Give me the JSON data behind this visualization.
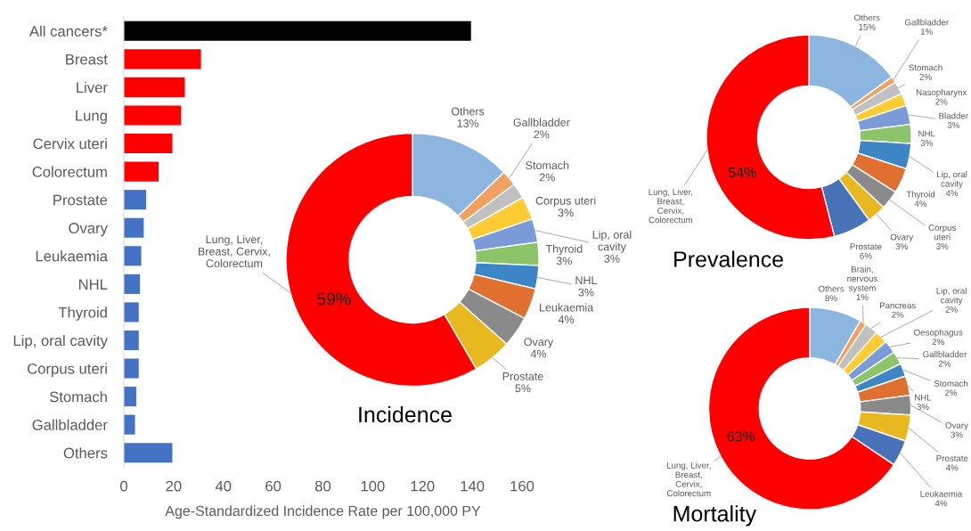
{
  "chart_data": [
    {
      "type": "bar",
      "orientation": "horizontal",
      "categories": [
        "All cancers*",
        "Breast",
        "Liver",
        "Lung",
        "Cervix uteri",
        "Colorectum",
        "Prostate",
        "Ovary",
        "Leukaemia",
        "NHL",
        "Thyroid",
        "Lip, oral cavity",
        "Corpus uteri",
        "Stomach",
        "Gallbladder",
        "Others"
      ],
      "values": [
        139.5,
        31,
        24.5,
        23,
        19.5,
        14,
        9,
        8,
        7,
        6.5,
        6,
        6,
        6,
        5,
        4.5,
        19.5
      ],
      "colors": [
        "#000000",
        "#ff0000",
        "#ff0000",
        "#ff0000",
        "#ff0000",
        "#ff0000",
        "#4472c4",
        "#4472c4",
        "#4472c4",
        "#4472c4",
        "#4472c4",
        "#4472c4",
        "#4472c4",
        "#4472c4",
        "#4472c4",
        "#4472c4"
      ],
      "xlabel": "Age-Standardized Incidence Rate per 100,000 PY",
      "xlim": [
        0,
        160
      ],
      "xticks": [
        0,
        20,
        40,
        60,
        80,
        100,
        120,
        140,
        160
      ]
    },
    {
      "type": "donut",
      "title": "Incidence",
      "categories": [
        "Others",
        "Gallbladder",
        "Stomach",
        "Corpus uteri",
        "Lip, oral\ncavity",
        "Thyroid",
        "NHL",
        "Leukaemia",
        "Ovary",
        "Prostate",
        "Lung, Liver,\nBreast, Cervix,\nColorectum"
      ],
      "values": [
        13,
        2,
        2,
        3,
        3,
        3,
        3,
        4,
        4,
        5,
        59
      ],
      "value_labels": [
        "13%",
        "2%",
        "2%",
        "3%",
        "3%",
        "3%",
        "3%",
        "4%",
        "4%",
        "5%",
        "59%"
      ],
      "colors": [
        "#8cb6e0",
        "#f0a060",
        "#c0c0c0",
        "#ffcc33",
        "#7a9ad8",
        "#8cc46a",
        "#3d86c6",
        "#e07030",
        "#8a8a8a",
        "#e8b820",
        "#ff0000"
      ]
    },
    {
      "type": "donut",
      "title": "Prevalence",
      "categories": [
        "Others",
        "Gallbladder",
        "Stomach",
        "Nasopharynx",
        "Bladder",
        "NHL",
        "Lip, oral\ncavity",
        "Thyroid",
        "Corpus\nuteri",
        "Ovary",
        "Prostate",
        "Lung, Liver,\nBreast,\nCervix,\nColorectum"
      ],
      "values": [
        15,
        1,
        2,
        2,
        3,
        3,
        4,
        4,
        3,
        3,
        6,
        54
      ],
      "value_labels": [
        "15%",
        "1%",
        "2%",
        "2%",
        "3%",
        "3%",
        "4%",
        "4%",
        "3%",
        "3%",
        "6%",
        "54%"
      ],
      "colors": [
        "#8cb6e0",
        "#f0a060",
        "#c0c0c0",
        "#ffcc33",
        "#7a9ad8",
        "#8cc46a",
        "#3d86c6",
        "#e07030",
        "#8a8a8a",
        "#e8b820",
        "#4a72b8",
        "#ff0000"
      ]
    },
    {
      "type": "donut",
      "title": "Mortality",
      "categories": [
        "Others",
        "Brain,\nnervous\nsystem",
        "Pancreas",
        "Lip, oral\ncavity",
        "Oesophagus",
        "Gallbladder",
        "Stomach",
        "NHL",
        "Ovary",
        "Prostate",
        "Leukaemia",
        "Lung, Liver,\nBreast,\nCervix,\nColorectum"
      ],
      "values": [
        8,
        1,
        2,
        2,
        2,
        2,
        2,
        3,
        3,
        4,
        4,
        63
      ],
      "value_labels": [
        "8%",
        "1%",
        "2%",
        "2%",
        "2%",
        "2%",
        "2%",
        "3%",
        "3%",
        "4%",
        "4%",
        "63%"
      ],
      "colors": [
        "#8cb6e0",
        "#f0a060",
        "#c0c0c0",
        "#ffcc33",
        "#7a9ad8",
        "#8cc46a",
        "#3d86c6",
        "#e07030",
        "#8a8a8a",
        "#e8b820",
        "#4a72b8",
        "#ff0000"
      ]
    }
  ]
}
